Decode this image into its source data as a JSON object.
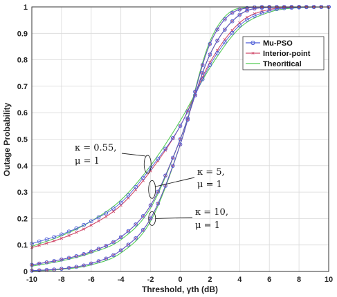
{
  "chart_data": {
    "type": "line",
    "title": "",
    "xlabel": "Threshold, γth (dB)",
    "ylabel": "Outage Probability",
    "xlim": [
      -10,
      10
    ],
    "ylim": [
      0,
      1
    ],
    "xticks": [
      "-10",
      "-8",
      "-6",
      "-4",
      "-2",
      "0",
      "2",
      "4",
      "6",
      "8",
      "10"
    ],
    "yticks": [
      "0",
      "0.1",
      "0.2",
      "0.3",
      "0.4",
      "0.5",
      "0.6",
      "0.7",
      "0.8",
      "0.9",
      "1"
    ],
    "grid": true,
    "legend_position": "top-right",
    "legend": [
      "Mu-PSO",
      "Interior-point",
      "Theoritical"
    ],
    "colors": {
      "mu_pso": "#4a5bd6",
      "interior_point": "#d04a6a",
      "theoretical": "#55cc55"
    },
    "curve_groups": [
      {
        "kappa_label": "κ = 0.55,",
        "mu_label": "μ = 1",
        "x": [
          -10,
          -8,
          -6,
          -4,
          -2,
          0,
          2,
          4,
          6,
          8,
          10
        ],
        "mu_pso": [
          0.105,
          0.14,
          0.19,
          0.26,
          0.39,
          0.55,
          0.78,
          0.93,
          0.985,
          0.998,
          1.0
        ],
        "interior_point": [
          0.09,
          0.125,
          0.175,
          0.25,
          0.38,
          0.55,
          0.79,
          0.94,
          0.99,
          0.999,
          1.0
        ],
        "theoretical": [
          0.095,
          0.135,
          0.19,
          0.27,
          0.4,
          0.57,
          0.77,
          0.92,
          0.98,
          0.997,
          1.0
        ]
      },
      {
        "kappa_label": "κ = 5,",
        "mu_label": "μ = 1",
        "x": [
          -10,
          -8,
          -6,
          -4,
          -2,
          0,
          2,
          4,
          6,
          8,
          10
        ],
        "mu_pso": [
          0.025,
          0.045,
          0.075,
          0.13,
          0.25,
          0.5,
          0.82,
          0.97,
          0.998,
          1.0,
          1.0
        ],
        "interior_point": [
          0.025,
          0.045,
          0.075,
          0.13,
          0.25,
          0.5,
          0.82,
          0.97,
          0.998,
          1.0,
          1.0
        ],
        "theoretical": [
          0.02,
          0.04,
          0.07,
          0.12,
          0.24,
          0.5,
          0.82,
          0.97,
          0.998,
          1.0,
          1.0
        ]
      },
      {
        "kappa_label": "κ = 10,",
        "mu_label": "μ = 1",
        "x": [
          -10,
          -8,
          -6,
          -4,
          -2,
          0,
          2,
          4,
          6,
          8,
          10
        ],
        "mu_pso": [
          0.003,
          0.01,
          0.03,
          0.08,
          0.2,
          0.48,
          0.86,
          0.99,
          1.0,
          1.0,
          1.0
        ],
        "interior_point": [
          0.003,
          0.01,
          0.03,
          0.08,
          0.2,
          0.48,
          0.86,
          0.99,
          1.0,
          1.0,
          1.0
        ],
        "theoretical": [
          0.002,
          0.008,
          0.025,
          0.07,
          0.19,
          0.48,
          0.87,
          0.995,
          1.0,
          1.0,
          1.0
        ]
      }
    ]
  }
}
